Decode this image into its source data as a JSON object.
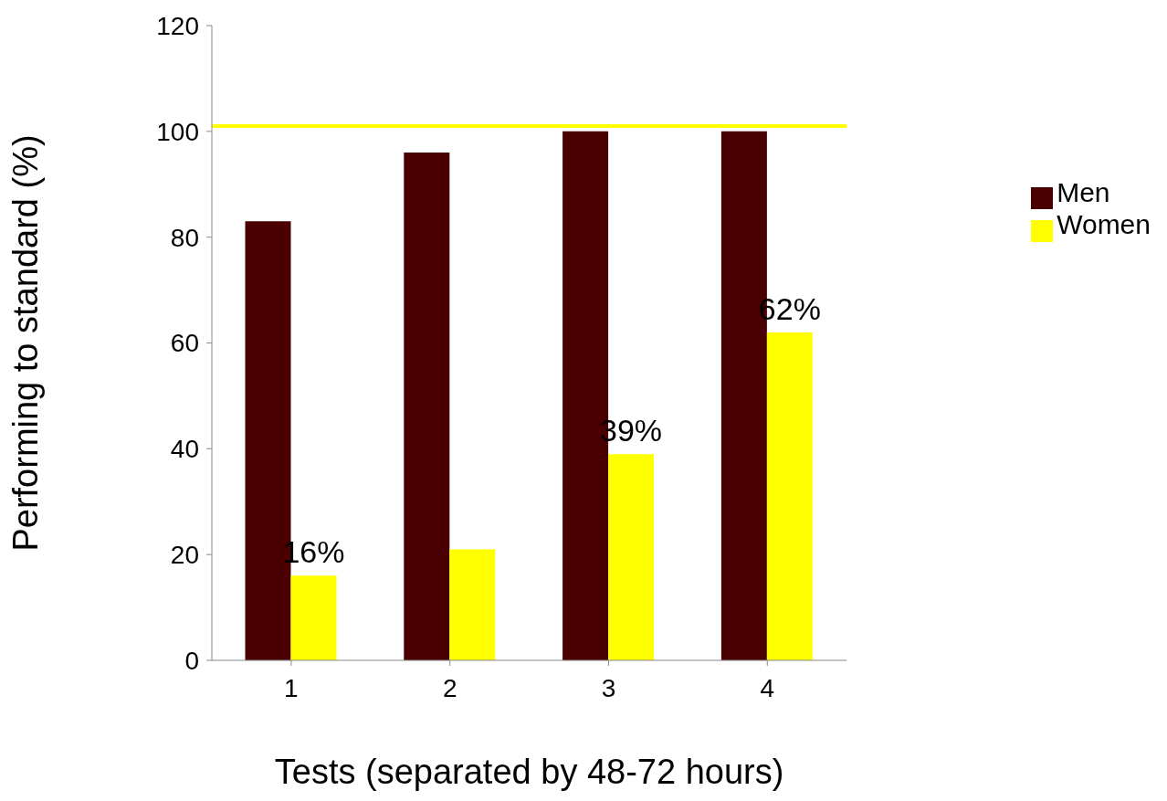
{
  "chart_data": {
    "type": "bar",
    "xlabel": "Tests (separated by 48-72 hours)",
    "ylabel": "Performing to standard (%)",
    "categories": [
      "1",
      "2",
      "3",
      "4"
    ],
    "series": [
      {
        "name": "Men",
        "color": "#4a0000",
        "values": [
          83,
          96,
          100,
          100
        ]
      },
      {
        "name": "Women",
        "color": "#ffff00",
        "values": [
          16,
          21,
          39,
          62
        ],
        "value_labels": [
          "16%",
          null,
          "39%",
          "62%"
        ]
      }
    ],
    "ylim": [
      0,
      120
    ],
    "yticks": [
      0,
      20,
      40,
      60,
      80,
      100,
      120
    ],
    "grid": false,
    "legend": "right",
    "ref_lines": [
      {
        "axis": "y",
        "value": 101,
        "color": "#ffff00"
      }
    ]
  }
}
